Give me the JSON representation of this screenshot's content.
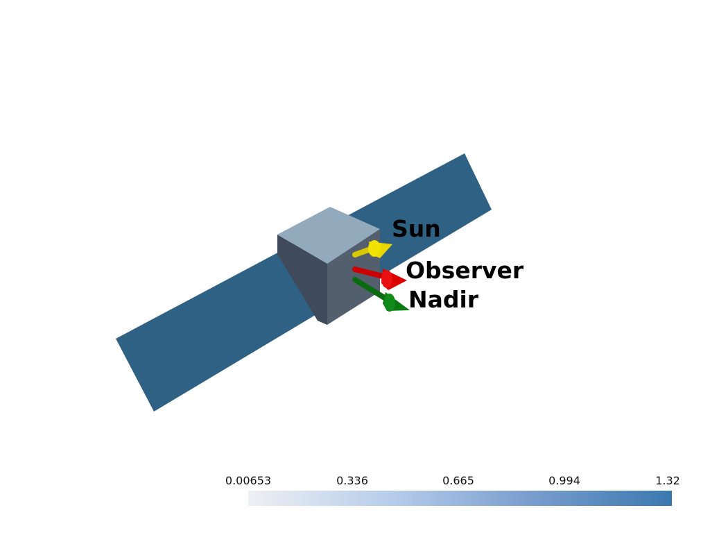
{
  "vectors": {
    "sun": "Sun",
    "observer": "Observer",
    "nadir": "Nadir"
  },
  "colorbar": {
    "ticks": [
      "0.00653",
      "0.336",
      "0.665",
      "0.994",
      "1.32"
    ],
    "min_color": "#eef0f3",
    "max_color": "#3a79b0"
  },
  "colors": {
    "panel": "#2f6185",
    "bus_top": "#93a9bc",
    "bus_left": "#3f4b5a",
    "bus_front": "#545f6e",
    "sun_arrow": "#e8d800",
    "observer_arrow": "#dd0000",
    "nadir_arrow": "#0a7a10"
  }
}
